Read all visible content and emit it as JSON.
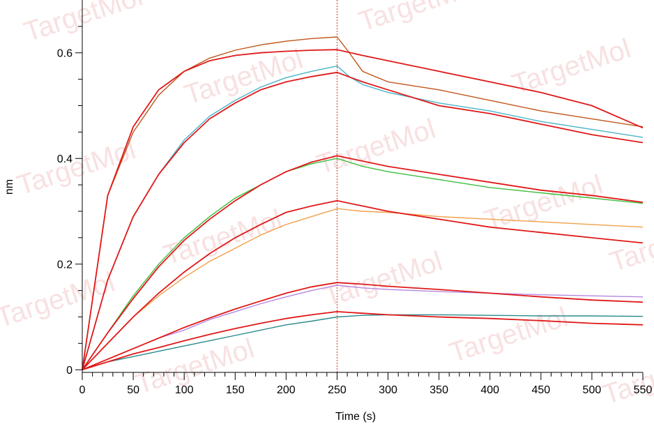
{
  "chart_data": {
    "type": "line",
    "xlabel": "Time (s)",
    "ylabel": "nm",
    "xlim": [
      0,
      550
    ],
    "ylim": [
      -0.005,
      0.7
    ],
    "x_ticks": [
      0,
      50,
      100,
      150,
      200,
      250,
      300,
      350,
      400,
      450,
      500,
      550
    ],
    "y_ticks": [
      0,
      0.2,
      0.4,
      0.6
    ],
    "y_tick_labels": [
      "0",
      "0.2",
      "0.4",
      "0.6"
    ],
    "x_minor_step": 10,
    "y_minor_step": 0.05,
    "phase_boundary_x": 250,
    "watermark_text": "TargetMol",
    "series": [
      {
        "color": "#c0561a",
        "x": [
          0,
          25,
          50,
          75,
          100,
          125,
          150,
          175,
          200,
          225,
          250,
          262,
          275,
          300,
          350,
          400,
          450,
          500,
          550
        ],
        "y": [
          0,
          0.33,
          0.45,
          0.52,
          0.565,
          0.59,
          0.605,
          0.615,
          0.622,
          0.627,
          0.63,
          0.6,
          0.565,
          0.545,
          0.53,
          0.51,
          0.49,
          0.475,
          0.46
        ]
      },
      {
        "color": "#4ab3c6",
        "x": [
          0,
          25,
          50,
          75,
          100,
          125,
          150,
          175,
          200,
          225,
          250,
          262,
          275,
          300,
          350,
          400,
          450,
          500,
          550
        ],
        "y": [
          0,
          0.17,
          0.29,
          0.37,
          0.435,
          0.48,
          0.51,
          0.535,
          0.553,
          0.565,
          0.575,
          0.555,
          0.54,
          0.525,
          0.505,
          0.49,
          0.47,
          0.455,
          0.44
        ]
      },
      {
        "color": "#3cbe3c",
        "x": [
          0,
          25,
          50,
          75,
          100,
          125,
          150,
          175,
          200,
          225,
          250,
          275,
          300,
          350,
          400,
          450,
          500,
          550
        ],
        "y": [
          0,
          0.07,
          0.14,
          0.2,
          0.25,
          0.29,
          0.325,
          0.35,
          0.375,
          0.39,
          0.4,
          0.385,
          0.375,
          0.36,
          0.345,
          0.335,
          0.325,
          0.315
        ]
      },
      {
        "color": "#f0a04a",
        "x": [
          0,
          25,
          50,
          75,
          100,
          125,
          150,
          175,
          200,
          225,
          250,
          275,
          300,
          350,
          400,
          450,
          500,
          550
        ],
        "y": [
          0,
          0.05,
          0.1,
          0.14,
          0.175,
          0.205,
          0.23,
          0.255,
          0.275,
          0.29,
          0.305,
          0.3,
          0.298,
          0.29,
          0.285,
          0.28,
          0.275,
          0.27
        ]
      },
      {
        "color": "#b487e0",
        "x": [
          0,
          25,
          50,
          75,
          100,
          125,
          150,
          175,
          200,
          225,
          250,
          275,
          300,
          350,
          400,
          450,
          500,
          550
        ],
        "y": [
          0,
          0.02,
          0.04,
          0.06,
          0.075,
          0.095,
          0.11,
          0.125,
          0.138,
          0.15,
          0.16,
          0.155,
          0.152,
          0.148,
          0.145,
          0.142,
          0.14,
          0.138
        ]
      },
      {
        "color": "#2a8a8a",
        "x": [
          0,
          25,
          50,
          75,
          100,
          125,
          150,
          175,
          200,
          225,
          250,
          275,
          300,
          350,
          400,
          450,
          500,
          550
        ],
        "y": [
          0,
          0.015,
          0.025,
          0.035,
          0.045,
          0.055,
          0.065,
          0.075,
          0.085,
          0.092,
          0.1,
          0.103,
          0.104,
          0.104,
          0.103,
          0.102,
          0.102,
          0.101
        ]
      },
      {
        "color": "#e01818",
        "x": [
          0,
          25,
          50,
          75,
          100,
          125,
          150,
          175,
          200,
          225,
          250,
          275,
          300,
          350,
          400,
          450,
          500,
          550
        ],
        "y": [
          0,
          0.33,
          0.46,
          0.53,
          0.565,
          0.585,
          0.595,
          0.6,
          0.603,
          0.605,
          0.606,
          0.595,
          0.585,
          0.565,
          0.545,
          0.525,
          0.5,
          0.458
        ]
      },
      {
        "color": "#e01818",
        "x": [
          0,
          25,
          50,
          75,
          100,
          125,
          150,
          175,
          200,
          225,
          250,
          275,
          300,
          350,
          400,
          450,
          500,
          550
        ],
        "y": [
          0,
          0.17,
          0.29,
          0.37,
          0.43,
          0.475,
          0.505,
          0.53,
          0.545,
          0.555,
          0.563,
          0.545,
          0.53,
          0.5,
          0.485,
          0.465,
          0.445,
          0.43
        ]
      },
      {
        "color": "#e01818",
        "x": [
          0,
          25,
          50,
          75,
          100,
          125,
          150,
          175,
          200,
          225,
          250,
          275,
          300,
          350,
          400,
          450,
          500,
          550
        ],
        "y": [
          0,
          0.07,
          0.135,
          0.195,
          0.245,
          0.285,
          0.32,
          0.35,
          0.375,
          0.393,
          0.405,
          0.395,
          0.385,
          0.37,
          0.355,
          0.34,
          0.33,
          0.317
        ]
      },
      {
        "color": "#e01818",
        "x": [
          0,
          25,
          50,
          75,
          100,
          125,
          150,
          175,
          200,
          225,
          250,
          275,
          300,
          350,
          400,
          450,
          500,
          550
        ],
        "y": [
          0,
          0.05,
          0.1,
          0.145,
          0.185,
          0.22,
          0.25,
          0.275,
          0.298,
          0.31,
          0.32,
          0.31,
          0.3,
          0.285,
          0.27,
          0.26,
          0.25,
          0.24
        ]
      },
      {
        "color": "#e01818",
        "x": [
          0,
          25,
          50,
          75,
          100,
          125,
          150,
          175,
          200,
          225,
          250,
          275,
          300,
          350,
          400,
          450,
          500,
          550
        ],
        "y": [
          0,
          0.02,
          0.04,
          0.06,
          0.08,
          0.098,
          0.115,
          0.13,
          0.145,
          0.157,
          0.165,
          0.162,
          0.158,
          0.152,
          0.145,
          0.138,
          0.132,
          0.128
        ]
      },
      {
        "color": "#e01818",
        "x": [
          0,
          25,
          50,
          75,
          100,
          125,
          150,
          175,
          200,
          225,
          250,
          275,
          300,
          350,
          400,
          450,
          500,
          550
        ],
        "y": [
          0,
          0.015,
          0.03,
          0.042,
          0.055,
          0.067,
          0.078,
          0.088,
          0.097,
          0.104,
          0.11,
          0.107,
          0.104,
          0.1,
          0.097,
          0.093,
          0.088,
          0.085
        ]
      }
    ]
  }
}
